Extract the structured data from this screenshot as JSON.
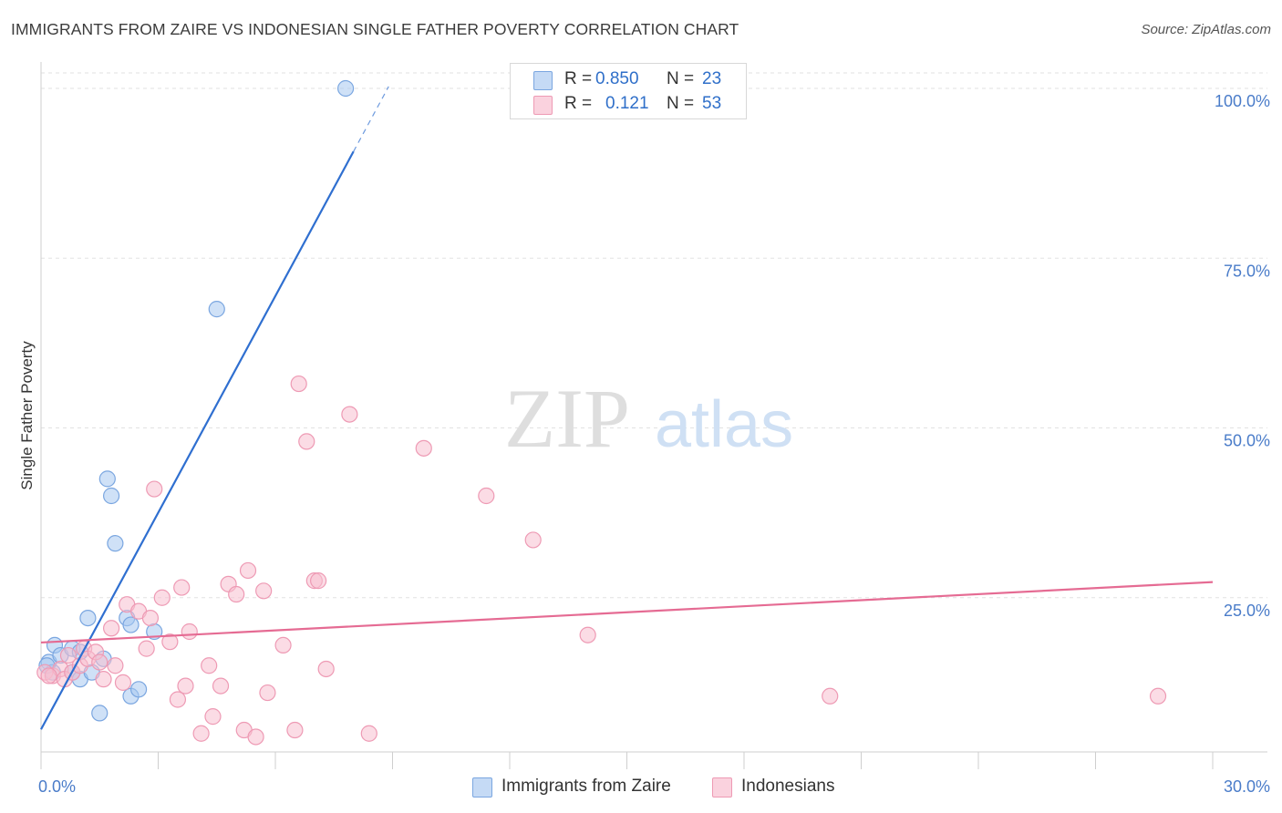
{
  "title": "IMMIGRANTS FROM ZAIRE VS INDONESIAN SINGLE FATHER POVERTY CORRELATION CHART",
  "source": "Source: ZipAtlas.com",
  "watermark": {
    "zip": "ZIP",
    "atlas": "atlas"
  },
  "legend": {
    "rows": [
      {
        "r_label": "R =",
        "r_value": "0.850",
        "n_label": "N =",
        "n_value": "23",
        "color": "#a8c8f0",
        "border": "#7aa6e0"
      },
      {
        "r_label": "R =",
        "r_value": "0.121",
        "n_label": "N =",
        "n_value": "53",
        "color": "#f7bfd0",
        "border": "#ee9ab4"
      }
    ]
  },
  "bottom_legend": [
    {
      "label": "Immigrants from Zaire",
      "color": "#a8c8f0",
      "border": "#7aa6e0"
    },
    {
      "label": "Indonesians",
      "color": "#f7bfd0",
      "border": "#ee9ab4"
    }
  ],
  "chart_data": {
    "type": "scatter",
    "title": "IMMIGRANTS FROM ZAIRE VS INDONESIAN SINGLE FATHER POVERTY CORRELATION CHART",
    "xlabel": "",
    "ylabel": "Single Father Poverty",
    "xlim": [
      0,
      30
    ],
    "ylim": [
      0,
      100
    ],
    "x_tick_labels": [
      "0.0%",
      "30.0%"
    ],
    "y_ticks": [
      25,
      50,
      75,
      100
    ],
    "y_tick_labels": [
      "25.0%",
      "50.0%",
      "75.0%",
      "100.0%"
    ],
    "grid": true,
    "series": [
      {
        "name": "Immigrants from Zaire",
        "color": "#a8c8f0",
        "stroke": "#7aa6e0",
        "line_color": "#2f6fd0",
        "trend": {
          "x0": 0.0,
          "y0": 5.6,
          "x1": 8.0,
          "y1": 90.7,
          "dash_to_x": 8.9
        },
        "points": [
          [
            0.2,
            15.5
          ],
          [
            0.3,
            14.0
          ],
          [
            0.35,
            18.0
          ],
          [
            0.5,
            16.5
          ],
          [
            0.8,
            17.5
          ],
          [
            0.8,
            14.0
          ],
          [
            1.0,
            13.0
          ],
          [
            1.0,
            17.0
          ],
          [
            1.2,
            22.0
          ],
          [
            1.3,
            14.0
          ],
          [
            1.5,
            8.0
          ],
          [
            1.6,
            16.0
          ],
          [
            1.7,
            42.5
          ],
          [
            1.8,
            40.0
          ],
          [
            1.9,
            33.0
          ],
          [
            2.2,
            22.0
          ],
          [
            2.3,
            21.0
          ],
          [
            2.3,
            10.5
          ],
          [
            2.5,
            11.5
          ],
          [
            2.9,
            20.0
          ],
          [
            4.5,
            67.5
          ],
          [
            7.8,
            100.0
          ],
          [
            0.15,
            15.0
          ]
        ]
      },
      {
        "name": "Indonesians",
        "color": "#f7bfd0",
        "stroke": "#ee9ab4",
        "line_color": "#e56b93",
        "trend": {
          "x0": 0.0,
          "y0": 18.4,
          "x1": 30.0,
          "y1": 27.3
        },
        "points": [
          [
            0.1,
            14.0
          ],
          [
            0.3,
            13.5
          ],
          [
            0.5,
            14.5
          ],
          [
            0.6,
            13.0
          ],
          [
            0.7,
            16.5
          ],
          [
            0.8,
            14.0
          ],
          [
            1.0,
            15.0
          ],
          [
            1.1,
            17.5
          ],
          [
            1.2,
            16.0
          ],
          [
            1.4,
            17.0
          ],
          [
            1.5,
            15.5
          ],
          [
            1.6,
            13.0
          ],
          [
            1.8,
            20.5
          ],
          [
            1.9,
            15.0
          ],
          [
            2.1,
            12.5
          ],
          [
            2.2,
            24.0
          ],
          [
            2.5,
            23.0
          ],
          [
            2.7,
            17.5
          ],
          [
            2.8,
            22.0
          ],
          [
            2.9,
            41.0
          ],
          [
            3.1,
            25.0
          ],
          [
            3.3,
            18.5
          ],
          [
            3.5,
            10.0
          ],
          [
            3.6,
            26.5
          ],
          [
            3.7,
            12.0
          ],
          [
            3.8,
            20.0
          ],
          [
            4.1,
            5.0
          ],
          [
            4.3,
            15.0
          ],
          [
            4.4,
            7.5
          ],
          [
            4.6,
            12.0
          ],
          [
            4.8,
            27.0
          ],
          [
            5.0,
            25.5
          ],
          [
            5.2,
            5.5
          ],
          [
            5.3,
            29.0
          ],
          [
            5.5,
            4.5
          ],
          [
            5.7,
            26.0
          ],
          [
            5.8,
            11.0
          ],
          [
            6.2,
            18.0
          ],
          [
            6.5,
            5.5
          ],
          [
            6.6,
            56.5
          ],
          [
            6.8,
            48.0
          ],
          [
            7.0,
            27.5
          ],
          [
            7.1,
            27.5
          ],
          [
            7.3,
            14.5
          ],
          [
            7.9,
            52.0
          ],
          [
            8.4,
            5.0
          ],
          [
            9.8,
            47.0
          ],
          [
            11.4,
            40.0
          ],
          [
            12.6,
            33.5
          ],
          [
            14.0,
            19.5
          ],
          [
            20.2,
            10.5
          ],
          [
            28.6,
            10.5
          ],
          [
            0.2,
            13.5
          ]
        ]
      }
    ]
  }
}
